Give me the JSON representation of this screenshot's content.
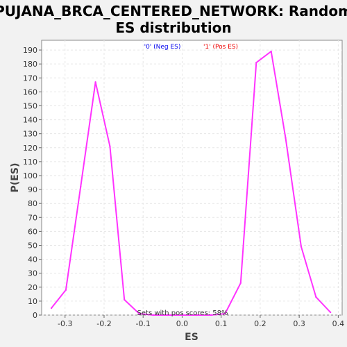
{
  "chart_data": {
    "type": "line",
    "title_lines": [
      "PUJANA_BRCA_CENTERED_NETWORK: Random",
      "ES distribution"
    ],
    "xlabel": "ES",
    "ylabel": "P(ES)",
    "xlim": [
      -0.36,
      0.41
    ],
    "ylim": [
      0,
      197
    ],
    "xticks": [
      -0.3,
      -0.2,
      -0.1,
      0.0,
      0.1,
      0.2,
      0.3,
      0.4
    ],
    "xtick_labels": [
      "-0.3",
      "-0.2",
      "-0.1",
      "0.0",
      "0.1",
      "0.2",
      "0.3",
      "0.4"
    ],
    "yticks": [
      0,
      10,
      20,
      30,
      40,
      50,
      60,
      70,
      80,
      90,
      100,
      110,
      120,
      130,
      140,
      150,
      160,
      170,
      180,
      190
    ],
    "grid": true,
    "legend": {
      "placement": "top-center",
      "entries": [
        {
          "label": "'0' (Neg ES)",
          "color": "#0000ee"
        },
        {
          "label": "'1' (Pos ES)",
          "color": "#ee0000"
        }
      ]
    },
    "annotation": "Sets with pos scores: 58%",
    "series": [
      {
        "color": "#ff33ff",
        "x": [
          -0.335,
          -0.298,
          -0.26,
          -0.222,
          -0.185,
          -0.148,
          -0.11,
          -0.074,
          -0.037,
          0.0,
          0.037,
          0.074,
          0.11,
          0.15,
          0.19,
          0.228,
          0.265,
          0.305,
          0.343,
          0.38
        ],
        "y": [
          5,
          18,
          92,
          167,
          121,
          11,
          1,
          0,
          0,
          0,
          0,
          0,
          1,
          23,
          181,
          189,
          127,
          49,
          13,
          2
        ]
      }
    ]
  }
}
